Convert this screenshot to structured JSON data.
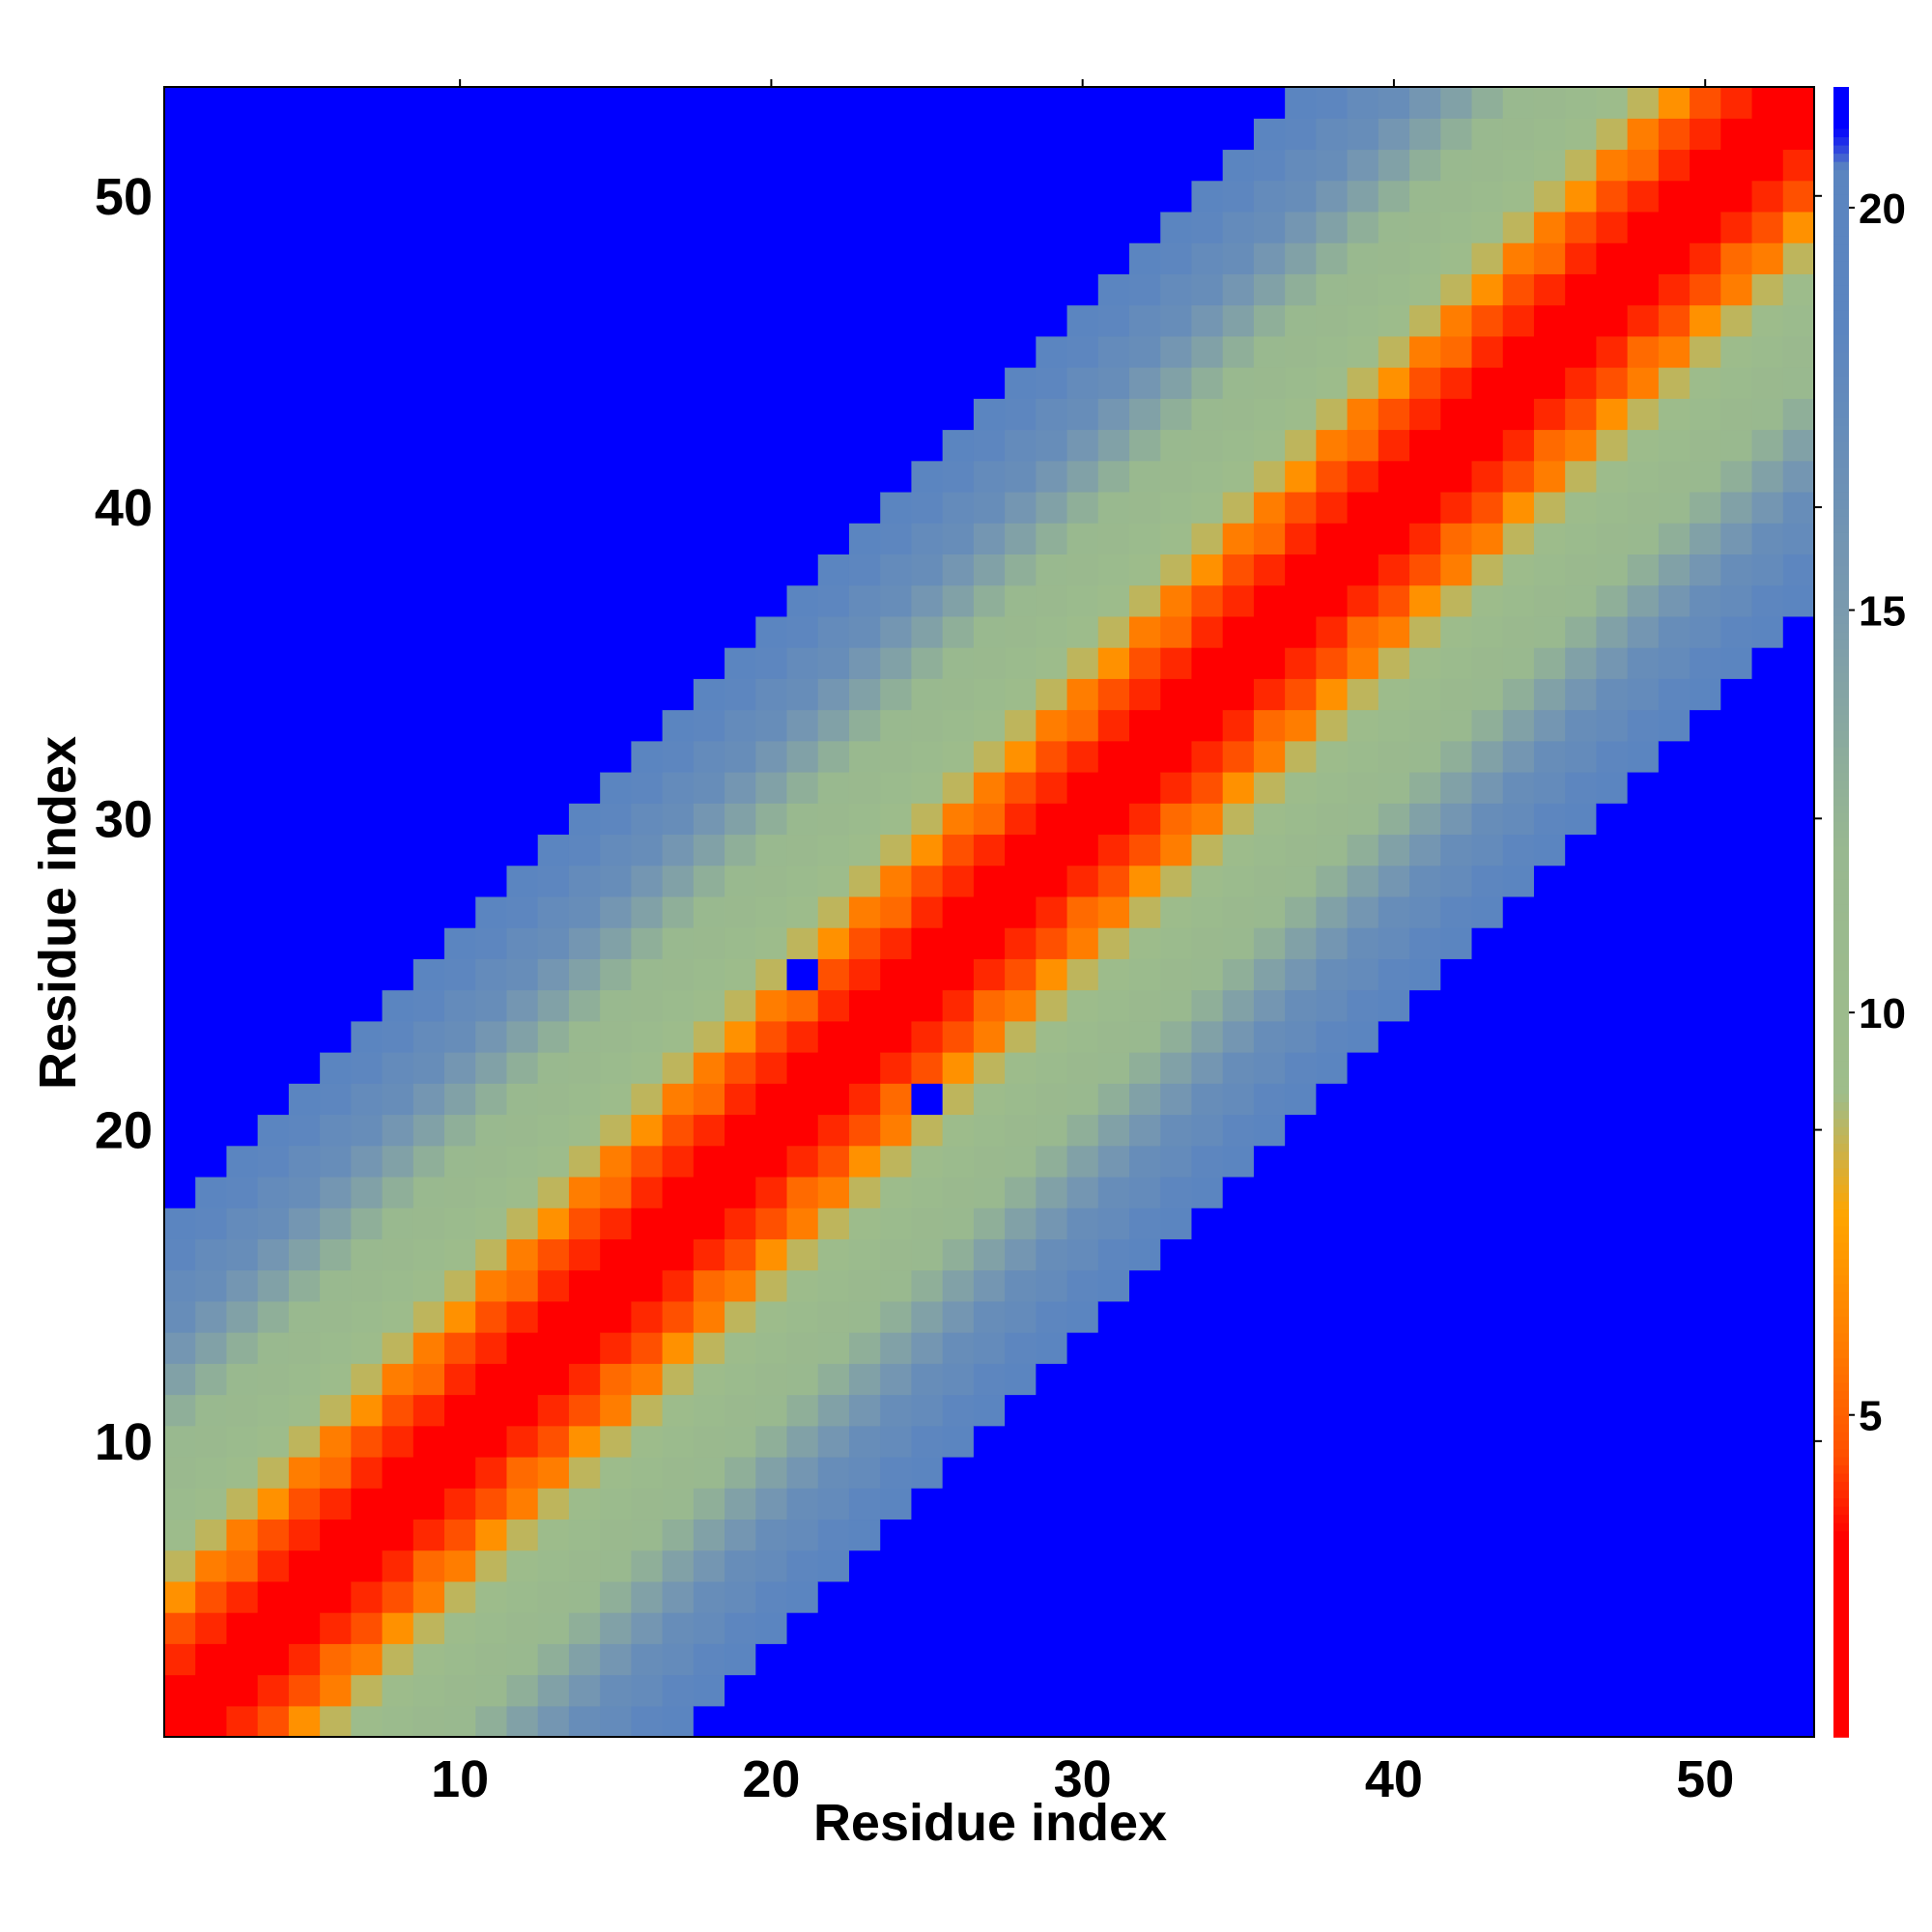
{
  "chart_data": {
    "type": "heatmap",
    "title": "",
    "xlabel": "Residue index",
    "ylabel": "Residue index",
    "n": 53,
    "xlim": [
      0.5,
      53.5
    ],
    "ylim": [
      0.5,
      53.5
    ],
    "xticks": [
      10,
      20,
      30,
      40,
      50
    ],
    "yticks": [
      10,
      20,
      30,
      40,
      50
    ],
    "colorbar": {
      "ticks": [
        5,
        10,
        15,
        20
      ],
      "range": [
        1,
        21.5
      ],
      "color_stops": [
        {
          "value": 1,
          "color": "#ff0000"
        },
        {
          "value": 3.5,
          "color": "#ff0000"
        },
        {
          "value": 4.5,
          "color": "#ff5000"
        },
        {
          "value": 6.0,
          "color": "#ff8000"
        },
        {
          "value": 7.5,
          "color": "#ffa500"
        },
        {
          "value": 9.0,
          "color": "#9ebd8a"
        },
        {
          "value": 12.0,
          "color": "#98b890"
        },
        {
          "value": 15.0,
          "color": "#7a9aae"
        },
        {
          "value": 18.5,
          "color": "#5b85c0"
        },
        {
          "value": 20.5,
          "color": "#5b85c0"
        },
        {
          "value": 21.0,
          "color": "#0000ff"
        }
      ]
    },
    "matrix_description": "Residue-residue distance map (Å); values computed as near-diagonal band, capped to blue beyond ~20",
    "band_model": {
      "a": 3.3,
      "b": 1.7,
      "c": 0.42,
      "threshold": 20
    },
    "anomalies": [
      {
        "x": 21,
        "y": 25,
        "value": 21
      },
      {
        "x": 25,
        "y": 21,
        "value": 21
      }
    ]
  }
}
